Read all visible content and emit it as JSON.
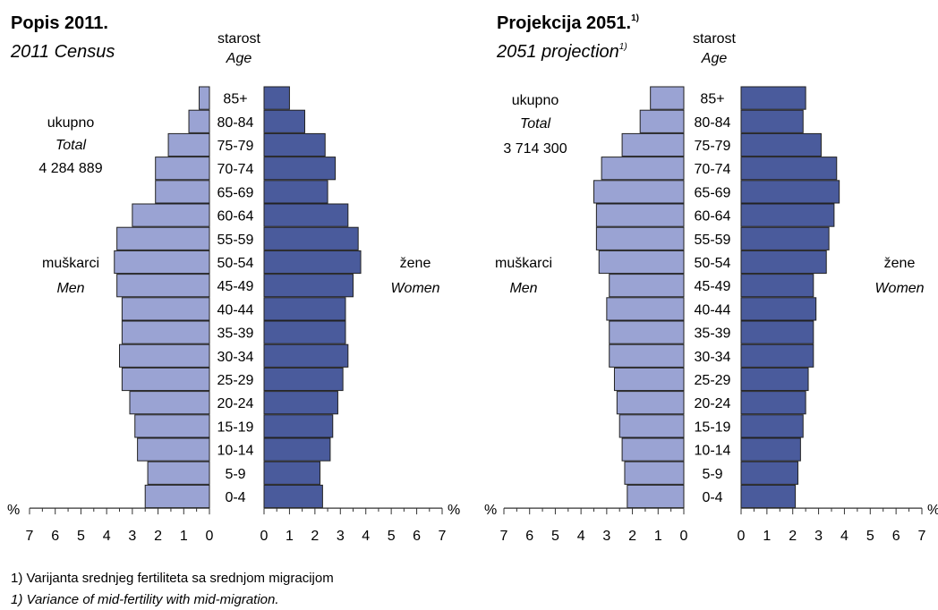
{
  "colors": {
    "men": "#9aa3d3",
    "women": "#4a5b9c",
    "outline": "#222222",
    "axis": "#333333"
  },
  "age_header": {
    "label": "starost",
    "label_en": "Age"
  },
  "percent_sign": "%",
  "footnote": {
    "line1": "1) Varijanta srednjeg fertiliteta sa srednjom migracijom",
    "line2": "1) Variance of mid-fertility with mid-migration."
  },
  "chart_data": [
    {
      "type": "bar",
      "subtype": "population-pyramid",
      "title": "Popis 2011.",
      "title_sup": "",
      "subtitle": "2011 Census",
      "subtitle_sup": "",
      "total_label": "ukupno",
      "total_label_en": "Total",
      "total_value": "4 284 889",
      "men_label": "muškarci",
      "men_label_en": "Men",
      "women_label": "žene",
      "women_label_en": "Women",
      "categories": [
        "0-4",
        "5-9",
        "10-14",
        "15-19",
        "20-24",
        "25-29",
        "30-34",
        "35-39",
        "40-44",
        "45-49",
        "50-54",
        "55-59",
        "60-64",
        "65-69",
        "70-74",
        "75-79",
        "80-84",
        "85+"
      ],
      "series": [
        {
          "name": "muškarci",
          "values": [
            2.5,
            2.4,
            2.8,
            2.9,
            3.1,
            3.4,
            3.5,
            3.4,
            3.4,
            3.6,
            3.7,
            3.6,
            3.0,
            2.1,
            2.1,
            1.6,
            0.8,
            0.4
          ]
        },
        {
          "name": "žene",
          "values": [
            2.3,
            2.2,
            2.6,
            2.7,
            2.9,
            3.1,
            3.3,
            3.2,
            3.2,
            3.5,
            3.8,
            3.7,
            3.3,
            2.5,
            2.8,
            2.4,
            1.6,
            1.0
          ]
        }
      ],
      "xlim": [
        0,
        7
      ],
      "xticks_left": [
        "7",
        "6",
        "5",
        "4",
        "3",
        "2",
        "1",
        "0"
      ],
      "xticks_right": [
        "0",
        "1",
        "2",
        "3",
        "4",
        "5",
        "6",
        "7"
      ],
      "xlabel": "%"
    },
    {
      "type": "bar",
      "subtype": "population-pyramid",
      "title": "Projekcija 2051.",
      "title_sup": "1)",
      "subtitle": "2051 projection",
      "subtitle_sup": "1)",
      "total_label": "ukupno",
      "total_label_en": "Total",
      "total_value": "3 714 300",
      "men_label": "muškarci",
      "men_label_en": "Men",
      "women_label": "žene",
      "women_label_en": "Women",
      "categories": [
        "0-4",
        "5-9",
        "10-14",
        "15-19",
        "20-24",
        "25-29",
        "30-34",
        "35-39",
        "40-44",
        "45-49",
        "50-54",
        "55-59",
        "60-64",
        "65-69",
        "70-74",
        "75-79",
        "80-84",
        "85+"
      ],
      "series": [
        {
          "name": "muškarci",
          "values": [
            2.2,
            2.3,
            2.4,
            2.5,
            2.6,
            2.7,
            2.9,
            2.9,
            3.0,
            2.9,
            3.3,
            3.4,
            3.4,
            3.5,
            3.2,
            2.4,
            1.7,
            1.3
          ]
        },
        {
          "name": "žene",
          "values": [
            2.1,
            2.2,
            2.3,
            2.4,
            2.5,
            2.6,
            2.8,
            2.8,
            2.9,
            2.8,
            3.3,
            3.4,
            3.6,
            3.8,
            3.7,
            3.1,
            2.4,
            2.5
          ]
        }
      ],
      "xlim": [
        0,
        7
      ],
      "xticks_left": [
        "7",
        "6",
        "5",
        "4",
        "3",
        "2",
        "1",
        "0"
      ],
      "xticks_right": [
        "0",
        "1",
        "2",
        "3",
        "4",
        "5",
        "6",
        "7"
      ],
      "xlabel": "%"
    }
  ]
}
